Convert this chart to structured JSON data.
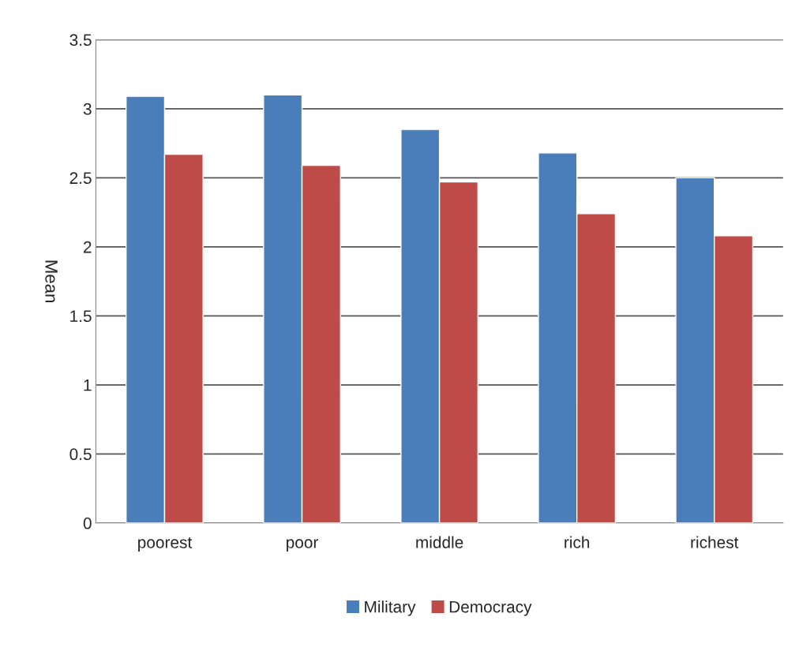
{
  "chart_data": {
    "type": "bar",
    "ylabel": "Mean",
    "categories": [
      "poorest",
      "poor",
      "middle",
      "rich",
      "richest"
    ],
    "series": [
      {
        "name": "Military",
        "color": "#4a7ebb",
        "values": [
          3.09,
          3.1,
          2.85,
          2.68,
          2.5
        ]
      },
      {
        "name": "Democracy",
        "color": "#be4b48",
        "values": [
          2.67,
          2.59,
          2.47,
          2.24,
          2.08
        ]
      }
    ],
    "ylim": [
      0,
      3.5
    ],
    "yticks": [
      0,
      0.5,
      1,
      1.5,
      2,
      2.5,
      3,
      3.5
    ],
    "grid": "y",
    "legend": "bottom"
  }
}
